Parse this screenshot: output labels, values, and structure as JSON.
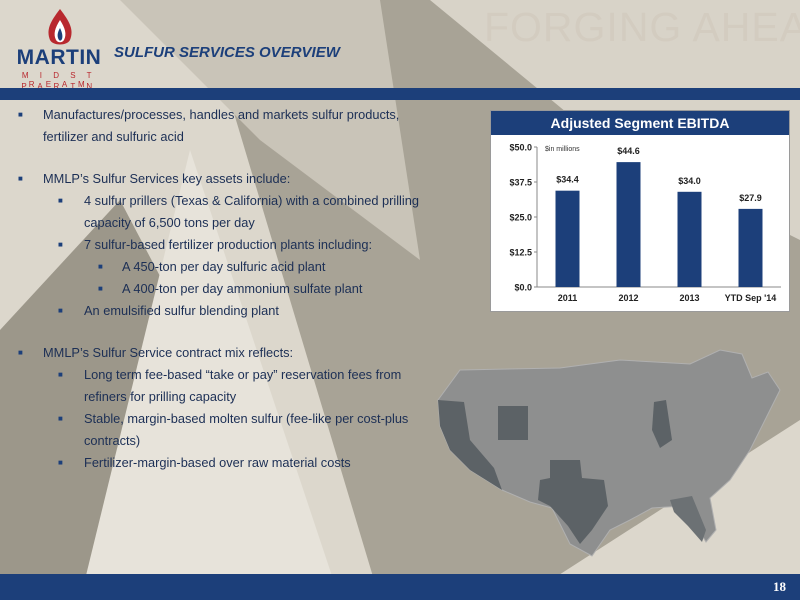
{
  "logo": {
    "brand": "MARTIN",
    "line1": "M I D S T R E A M",
    "line2": "P A R T N E R S"
  },
  "header": {
    "section_title": "SULFUR SERVICES OVERVIEW",
    "headline": "FORGING AHEAD"
  },
  "bullets": [
    {
      "level": 1,
      "text": "Manufactures/processes, handles and markets sulfur products, fertilizer and sulfuric acid"
    },
    {
      "level": 1,
      "text": "MMLP’s Sulfur Services key assets include:"
    },
    {
      "level": 2,
      "text": "4 sulfur prillers (Texas & California) with a combined prilling capacity of 6,500 tons per day"
    },
    {
      "level": 2,
      "text": "7 sulfur-based fertilizer production plants including:"
    },
    {
      "level": 3,
      "text": "A 450-ton per day sulfuric acid plant"
    },
    {
      "level": 3,
      "text": "A 400-ton per day ammonium sulfate plant"
    },
    {
      "level": 2,
      "text": "An emulsified sulfur blending plant"
    },
    {
      "level": 1,
      "text": "MMLP’s Sulfur Service contract mix reflects:"
    },
    {
      "level": 2,
      "text": "Long term fee-based “take or pay” reservation fees from refiners for prilling capacity"
    },
    {
      "level": 2,
      "text": "Stable, margin-based molten sulfur (fee-like per cost-plus contracts)"
    },
    {
      "level": 2,
      "text": "Fertilizer-margin-based over raw material costs"
    }
  ],
  "chart_data": {
    "type": "bar",
    "title": "Adjusted Segment EBITDA",
    "unit_note": "$in millions",
    "categories": [
      "2011",
      "2012",
      "2013",
      "YTD Sep '14"
    ],
    "values": [
      34.4,
      44.6,
      34.0,
      27.9
    ],
    "value_labels": [
      "$34.4",
      "$44.6",
      "$34.0",
      "$27.9"
    ],
    "y_ticks": [
      0,
      12.5,
      25,
      37.5,
      50
    ],
    "y_tick_labels": [
      "$0.0",
      "$12.5",
      "$25.0",
      "$37.5",
      "$50.0"
    ],
    "ylim": [
      0,
      50
    ],
    "bar_color": "#1c3f7a",
    "grid": false,
    "legend": "none"
  },
  "footer": {
    "page_number": "18"
  },
  "colors": {
    "navy": "#1c3f7a",
    "red": "#b8282e",
    "text": "#1c2f55"
  }
}
